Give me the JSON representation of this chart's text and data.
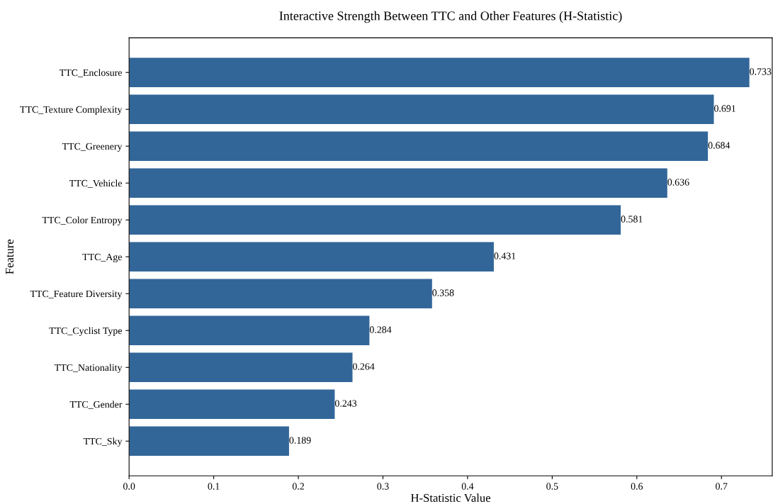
{
  "chart_data": {
    "type": "bar",
    "orientation": "horizontal",
    "title": "Interactive Strength Between TTC and Other Features (H-Statistic)",
    "xlabel": "H-Statistic Value",
    "ylabel": "Feature",
    "categories": [
      "TTC_Enclosure",
      "TTC_Texture Complexity",
      "TTC_Greenery",
      "TTC_Vehicle",
      "TTC_Color Entropy",
      "TTC_Age",
      "TTC_Feature Diversity",
      "TTC_Cyclist Type",
      "TTC_Nationality",
      "TTC_Gender",
      "TTC_Sky"
    ],
    "values": [
      0.733,
      0.691,
      0.684,
      0.636,
      0.581,
      0.431,
      0.358,
      0.284,
      0.264,
      0.243,
      0.189
    ],
    "color": "#326699",
    "data_labels": true,
    "xlim": [
      0,
      0.76
    ],
    "xticks": [
      {
        "value": 0,
        "label": "0.0"
      },
      0.1,
      0.2,
      0.3,
      0.4,
      0.5,
      0.6,
      0.7
    ],
    "grid": false
  }
}
